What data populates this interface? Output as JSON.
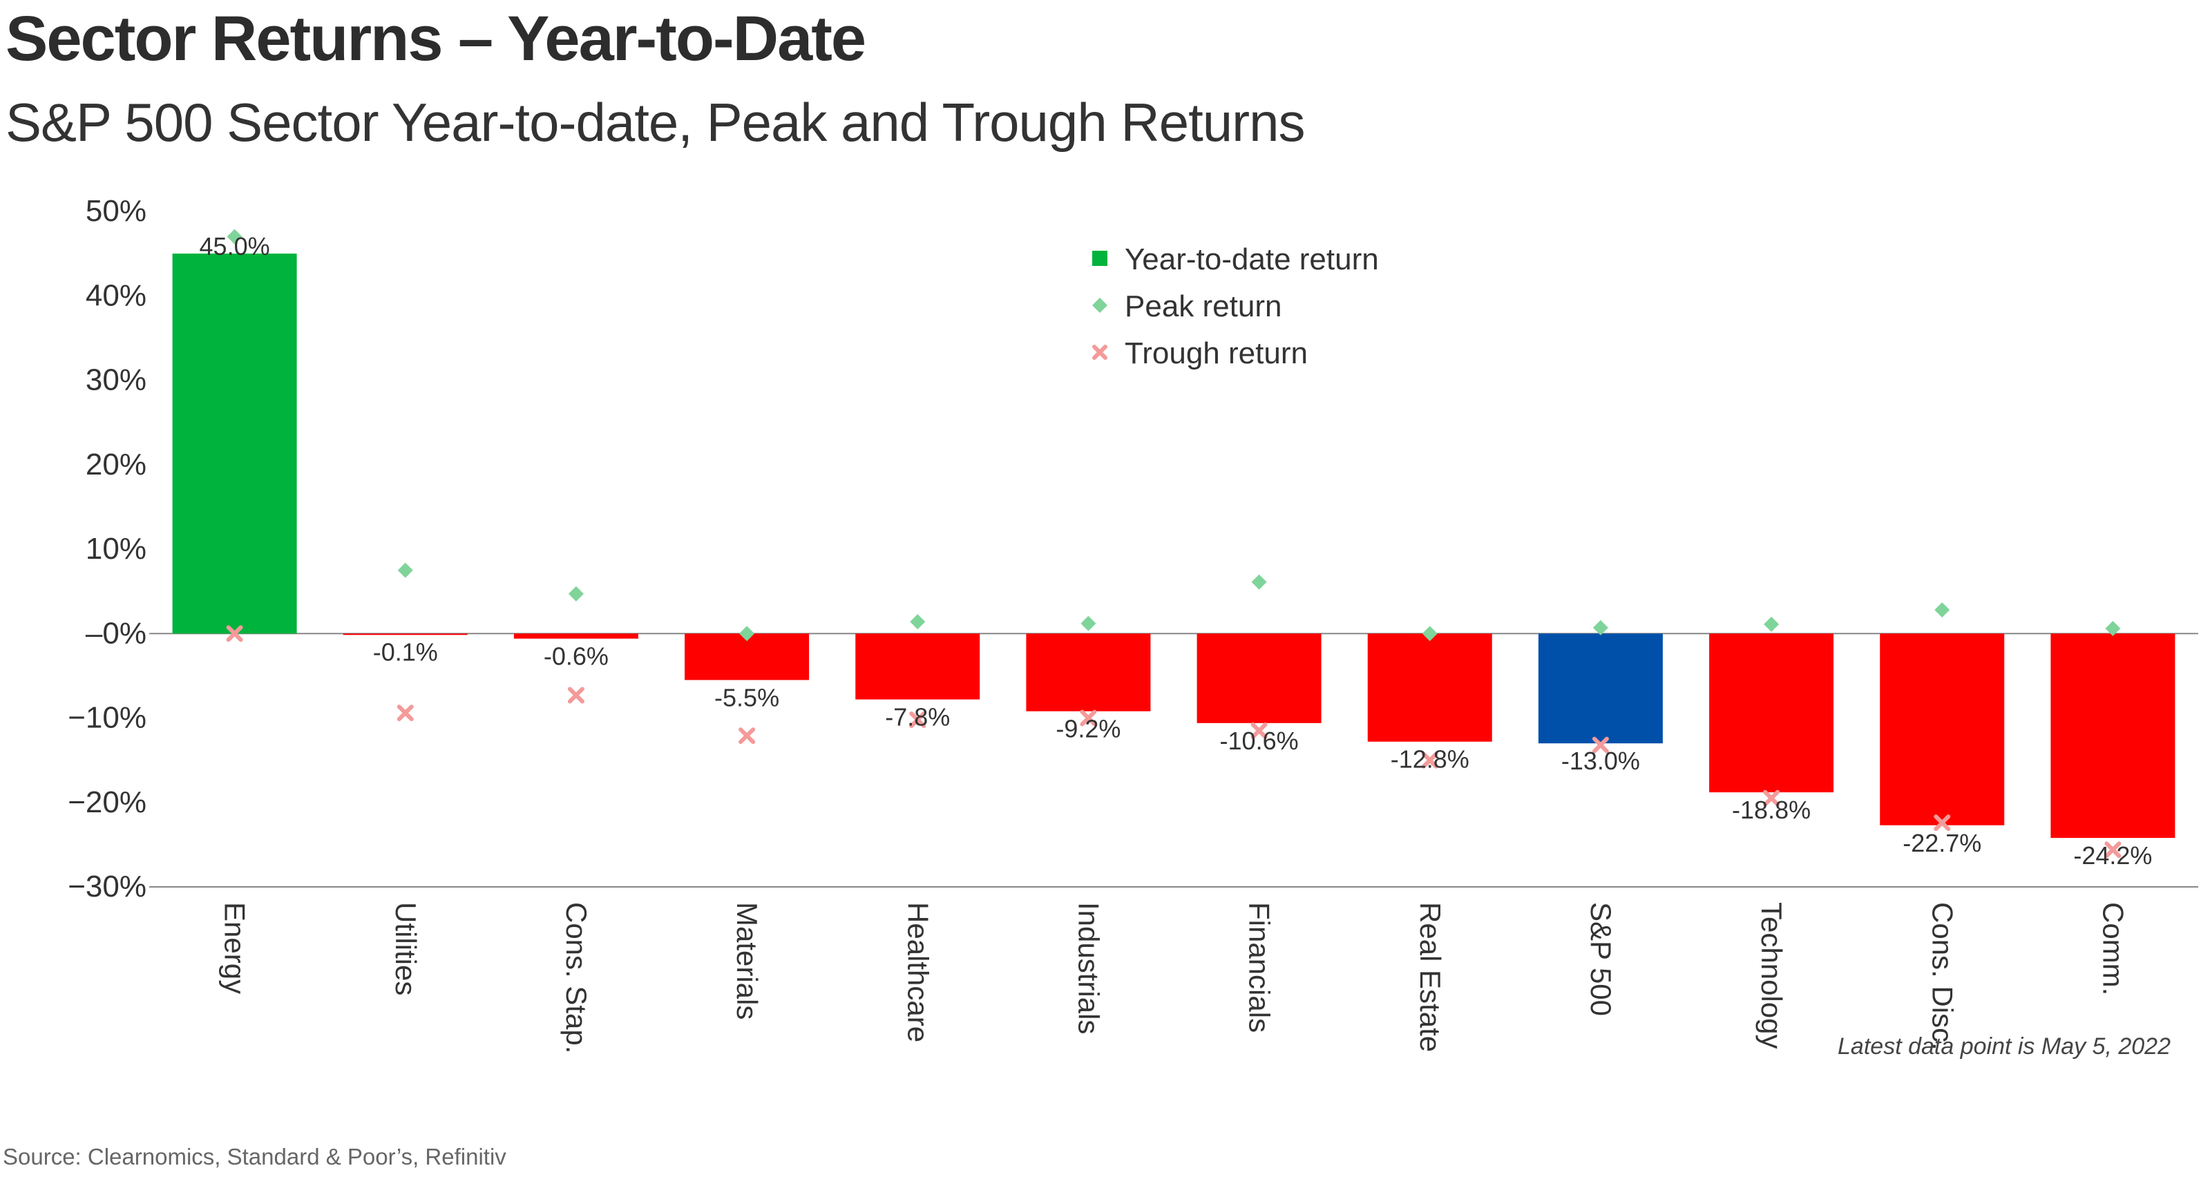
{
  "title": "Sector Returns – Year-to-Date",
  "subtitle": "S&P 500 Sector Year-to-date, Peak and Trough Returns",
  "note": "Latest data point is May 5, 2022",
  "source": "Source: Clearnomics, Standard & Poor’s, Refinitiv",
  "colors": {
    "positive": "#00b33c",
    "negative": "#ff0000",
    "benchmark": "#0050aa",
    "peak": "#7fd49a",
    "trough": "#f49a9a",
    "axis": "#888888"
  },
  "chart_data": {
    "type": "bar",
    "ylim": [
      -30,
      50
    ],
    "yticks": [
      "50%",
      "40%",
      "30%",
      "20%",
      "10%",
      "–0%",
      "−10%",
      "−20%",
      "−30%"
    ],
    "ytick_values": [
      50,
      40,
      30,
      20,
      10,
      0,
      -10,
      -20,
      -30
    ],
    "grid": false,
    "legend_position": "top-center",
    "categories": [
      "Energy",
      "Utilities",
      "Cons. Stap.",
      "Materials",
      "Healthcare",
      "Industrials",
      "Financials",
      "Real Estate",
      "S&P 500",
      "Technology",
      "Cons. Disc.",
      "Comm."
    ],
    "series": [
      {
        "name": "Year-to-date return",
        "type": "bar",
        "values": [
          45.0,
          -0.1,
          -0.6,
          -5.5,
          -7.8,
          -9.2,
          -10.6,
          -12.8,
          -13.0,
          -18.8,
          -22.7,
          -24.2
        ],
        "labels": [
          "45.0%",
          "-0.1%",
          "-0.6%",
          "-5.5%",
          "-7.8%",
          "-9.2%",
          "-10.6%",
          "-12.8%",
          "-13.0%",
          "-18.8%",
          "-22.7%",
          "-24.2%"
        ]
      },
      {
        "name": "Peak return",
        "type": "marker",
        "values": [
          47.0,
          7.5,
          4.7,
          0.0,
          1.4,
          1.2,
          6.1,
          0.0,
          0.7,
          1.1,
          2.8,
          0.6
        ]
      },
      {
        "name": "Trough return",
        "type": "marker",
        "values": [
          0.0,
          -9.4,
          -7.3,
          -12.1,
          -10.2,
          -10.0,
          -11.5,
          -15.0,
          -13.2,
          -19.5,
          -22.4,
          -25.6
        ]
      }
    ]
  }
}
